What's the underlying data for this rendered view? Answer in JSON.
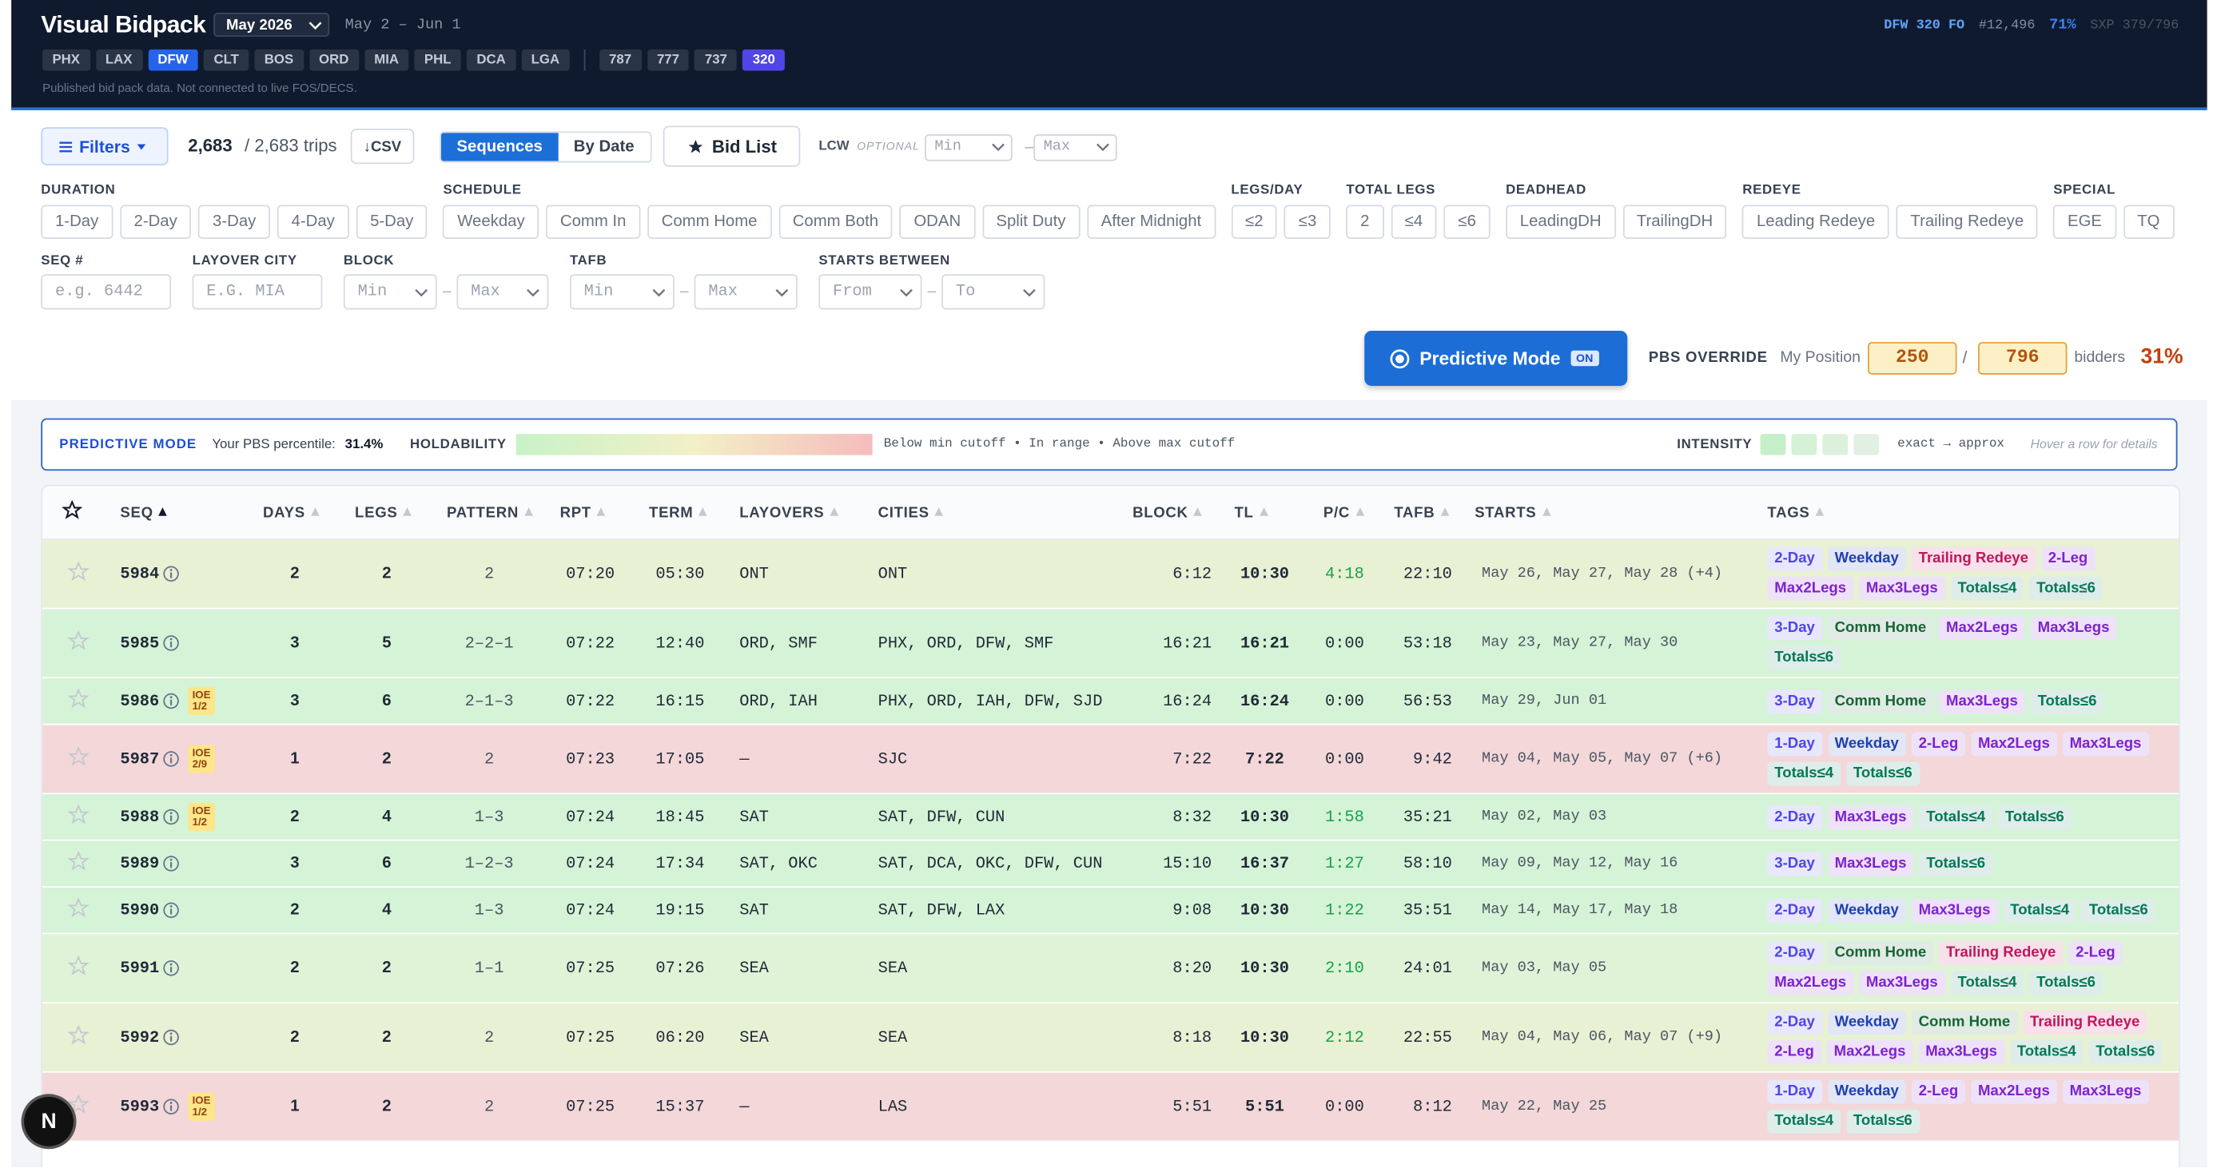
{
  "header": {
    "title": "Visual Bidpack",
    "month": "May 2026",
    "range": "May 2 – Jun 1",
    "bases": [
      {
        "label": "PHX"
      },
      {
        "label": "LAX"
      },
      {
        "label": "DFW",
        "selected": true
      },
      {
        "label": "CLT"
      },
      {
        "label": "BOS"
      },
      {
        "label": "ORD"
      },
      {
        "label": "MIA"
      },
      {
        "label": "PHL"
      },
      {
        "label": "DCA"
      },
      {
        "label": "LGA"
      }
    ],
    "fleets": [
      {
        "label": "787"
      },
      {
        "label": "777"
      },
      {
        "label": "737"
      },
      {
        "label": "320",
        "selected": true
      }
    ],
    "note": "Published bid pack data. Not connected to live FOS/DECS.",
    "status": {
      "crew": "DFW 320 FO",
      "employee": "#12,496",
      "percent": "71%",
      "sxp": "SXP 379/796"
    }
  },
  "toolbar": {
    "filters": "Filters",
    "count": "2,683",
    "total": "/ 2,683 trips",
    "csv": "↓CSV",
    "views": [
      {
        "label": "Sequences",
        "selected": true
      },
      {
        "label": "By Date"
      }
    ],
    "bid_list": "Bid List",
    "lcw": "LCW",
    "lcw_note": "OPTIONAL",
    "lcw_min": "Min",
    "lcw_max": "Max"
  },
  "filters": {
    "groups": [
      {
        "label": "DURATION",
        "options": [
          "1-Day",
          "2-Day",
          "3-Day",
          "4-Day",
          "5-Day"
        ]
      },
      {
        "label": "SCHEDULE",
        "options": [
          "Weekday",
          "Comm In",
          "Comm Home",
          "Comm Both",
          "ODAN",
          "Split Duty",
          "After Midnight"
        ]
      },
      {
        "label": "LEGS/DAY",
        "options": [
          "≤2",
          "≤3"
        ]
      },
      {
        "label": "TOTAL LEGS",
        "options": [
          "2",
          "≤4",
          "≤6"
        ]
      },
      {
        "label": "DEADHEAD",
        "options": [
          "LeadingDH",
          "TrailingDH"
        ]
      },
      {
        "label": "REDEYE",
        "options": [
          "Leading Redeye",
          "Trailing Redeye"
        ]
      },
      {
        "label": "SPECIAL",
        "options": [
          "EGE",
          "TQ"
        ]
      }
    ],
    "fields": [
      {
        "label": "SEQ #",
        "inputs": [
          "e.g. 6442"
        ]
      },
      {
        "label": "LAYOVER CITY",
        "inputs": [
          "E.G. MIA"
        ]
      },
      {
        "label": "BLOCK",
        "inputs": [
          "Min",
          "Max"
        ],
        "select": true
      },
      {
        "label": "TAFB",
        "inputs": [
          "Min",
          "Max"
        ],
        "select": true
      },
      {
        "label": "STARTS BETWEEN",
        "inputs": [
          "From",
          "To"
        ],
        "select": true
      }
    ]
  },
  "predictive": {
    "button": "Predictive Mode",
    "state": "ON",
    "override": "PBS OVERRIDE",
    "position_label": "My Position",
    "position": "250",
    "divider": "/",
    "bidders_count": "796",
    "bidders": "bidders",
    "percent": "31%"
  },
  "legend": {
    "title": "PREDICTIVE MODE",
    "percentile_label": "Your PBS percentile:",
    "percentile": "31.4%",
    "holdability": "HOLDABILITY",
    "holdability_note": "Below min cutoff • In range • Above max cutoff",
    "intensity": "INTENSITY",
    "intensity_note": "exact → approx",
    "hint": "Hover a row for details"
  },
  "table": {
    "columns": [
      "SEQ",
      "DAYS",
      "LEGS",
      "PATTERN",
      "RPT",
      "TERM",
      "LAYOVERS",
      "CITIES",
      "BLOCK",
      "TL",
      "P/C",
      "TAFB",
      "STARTS",
      "TAGS"
    ],
    "rows": [
      {
        "bg": "#e8f1d3",
        "seq": "5984",
        "days": "2",
        "legs": "2",
        "pattern": "2",
        "rpt": "07:20",
        "term": "05:30",
        "layovers": "ONT",
        "cities": "ONT",
        "block": "6:12",
        "tl": "10:30",
        "pc": "4:18",
        "pc_color": "#16a34a",
        "tafb": "22:10",
        "starts": "May 26, May 27, May 28 (+4)",
        "tags": [
          {
            "text": "2-Day",
            "color": "#4f46e5"
          },
          {
            "text": "Weekday",
            "color": "#1e40af"
          },
          {
            "text": "Trailing Redeye",
            "color": "#be185d"
          },
          {
            "text": "2-Leg",
            "color": "#7e22ce"
          },
          {
            "text": "Max2Legs",
            "color": "#7e22ce"
          },
          {
            "text": "Max3Legs",
            "color": "#7e22ce"
          },
          {
            "text": "Totals≤4",
            "color": "#047857"
          },
          {
            "text": "Totals≤6",
            "color": "#047857"
          }
        ]
      },
      {
        "bg": "#d5f3d6",
        "seq": "5985",
        "days": "3",
        "legs": "5",
        "pattern": "2–2–1",
        "rpt": "07:22",
        "term": "12:40",
        "layovers": "ORD, SMF",
        "cities": "PHX, ORD, DFW, SMF",
        "block": "16:21",
        "tl": "16:21",
        "pc": "0:00",
        "pc_color": "#1f2937",
        "tafb": "53:18",
        "starts": "May 23, May 27, May 30",
        "tags": [
          {
            "text": "3-Day",
            "color": "#4f46e5"
          },
          {
            "text": "Comm Home",
            "color": "#166534"
          },
          {
            "text": "Max2Legs",
            "color": "#7e22ce"
          },
          {
            "text": "Max3Legs",
            "color": "#7e22ce"
          },
          {
            "text": "Totals≤6",
            "color": "#047857"
          }
        ]
      },
      {
        "bg": "#d5f3d6",
        "seq": "5986",
        "ioe": {
          "label": "IOE",
          "value": "1/2"
        },
        "days": "3",
        "legs": "6",
        "pattern": "2–1–3",
        "rpt": "07:22",
        "term": "16:15",
        "layovers": "ORD, IAH",
        "cities": "PHX, ORD, IAH, DFW, SJD",
        "block": "16:24",
        "tl": "16:24",
        "pc": "0:00",
        "pc_color": "#1f2937",
        "tafb": "56:53",
        "starts": "May 29, Jun 01",
        "tags": [
          {
            "text": "3-Day",
            "color": "#4f46e5"
          },
          {
            "text": "Comm Home",
            "color": "#166534"
          },
          {
            "text": "Max3Legs",
            "color": "#7e22ce"
          },
          {
            "text": "Totals≤6",
            "color": "#047857"
          }
        ]
      },
      {
        "bg": "#f3d7d9",
        "seq": "5987",
        "ioe": {
          "label": "IOE",
          "value": "2/9"
        },
        "days": "1",
        "legs": "2",
        "pattern": "2",
        "rpt": "07:23",
        "term": "17:05",
        "layovers": "—",
        "cities": "SJC",
        "block": "7:22",
        "tl": "7:22",
        "pc": "0:00",
        "pc_color": "#1f2937",
        "tafb": "9:42",
        "starts": "May 04, May 05, May 07 (+6)",
        "tags": [
          {
            "text": "1-Day",
            "color": "#4f46e5"
          },
          {
            "text": "Weekday",
            "color": "#1e40af"
          },
          {
            "text": "2-Leg",
            "color": "#7e22ce"
          },
          {
            "text": "Max2Legs",
            "color": "#7e22ce"
          },
          {
            "text": "Max3Legs",
            "color": "#7e22ce"
          },
          {
            "text": "Totals≤4",
            "color": "#047857"
          },
          {
            "text": "Totals≤6",
            "color": "#047857"
          }
        ]
      },
      {
        "bg": "#d5f3d6",
        "seq": "5988",
        "ioe": {
          "label": "IOE",
          "value": "1/2"
        },
        "days": "2",
        "legs": "4",
        "pattern": "1–3",
        "rpt": "07:24",
        "term": "18:45",
        "layovers": "SAT",
        "cities": "SAT, DFW, CUN",
        "block": "8:32",
        "tl": "10:30",
        "pc": "1:58",
        "pc_color": "#16a34a",
        "tafb": "35:21",
        "starts": "May 02, May 03",
        "tags": [
          {
            "text": "2-Day",
            "color": "#4f46e5"
          },
          {
            "text": "Max3Legs",
            "color": "#7e22ce"
          },
          {
            "text": "Totals≤4",
            "color": "#047857"
          },
          {
            "text": "Totals≤6",
            "color": "#047857"
          }
        ]
      },
      {
        "bg": "#d5f3d6",
        "seq": "5989",
        "days": "3",
        "legs": "6",
        "pattern": "1–2–3",
        "rpt": "07:24",
        "term": "17:34",
        "layovers": "SAT, OKC",
        "cities": "SAT, DCA, OKC, DFW, CUN",
        "block": "15:10",
        "tl": "16:37",
        "pc": "1:27",
        "pc_color": "#16a34a",
        "tafb": "58:10",
        "starts": "May 09, May 12, May 16",
        "tags": [
          {
            "text": "3-Day",
            "color": "#4f46e5"
          },
          {
            "text": "Max3Legs",
            "color": "#7e22ce"
          },
          {
            "text": "Totals≤6",
            "color": "#047857"
          }
        ]
      },
      {
        "bg": "#d5f3d6",
        "seq": "5990",
        "days": "2",
        "legs": "4",
        "pattern": "1–3",
        "rpt": "07:24",
        "term": "19:15",
        "layovers": "SAT",
        "cities": "SAT, DFW, LAX",
        "block": "9:08",
        "tl": "10:30",
        "pc": "1:22",
        "pc_color": "#16a34a",
        "tafb": "35:51",
        "starts": "May 14, May 17, May 18",
        "tags": [
          {
            "text": "2-Day",
            "color": "#4f46e5"
          },
          {
            "text": "Weekday",
            "color": "#1e40af"
          },
          {
            "text": "Max3Legs",
            "color": "#7e22ce"
          },
          {
            "text": "Totals≤4",
            "color": "#047857"
          },
          {
            "text": "Totals≤6",
            "color": "#047857"
          }
        ]
      },
      {
        "bg": "#dff3d7",
        "seq": "5991",
        "days": "2",
        "legs": "2",
        "pattern": "1–1",
        "rpt": "07:25",
        "term": "07:26",
        "layovers": "SEA",
        "cities": "SEA",
        "block": "8:20",
        "tl": "10:30",
        "pc": "2:10",
        "pc_color": "#16a34a",
        "tafb": "24:01",
        "starts": "May 03, May 05",
        "tags": [
          {
            "text": "2-Day",
            "color": "#4f46e5"
          },
          {
            "text": "Comm Home",
            "color": "#166534"
          },
          {
            "text": "Trailing Redeye",
            "color": "#be185d"
          },
          {
            "text": "2-Leg",
            "color": "#7e22ce"
          },
          {
            "text": "Max2Legs",
            "color": "#7e22ce"
          },
          {
            "text": "Max3Legs",
            "color": "#7e22ce"
          },
          {
            "text": "Totals≤4",
            "color": "#047857"
          },
          {
            "text": "Totals≤6",
            "color": "#047857"
          }
        ]
      },
      {
        "bg": "#e8f1d3",
        "seq": "5992",
        "days": "2",
        "legs": "2",
        "pattern": "2",
        "rpt": "07:25",
        "term": "06:20",
        "layovers": "SEA",
        "cities": "SEA",
        "block": "8:18",
        "tl": "10:30",
        "pc": "2:12",
        "pc_color": "#16a34a",
        "tafb": "22:55",
        "starts": "May 04, May 06, May 07 (+9)",
        "tags": [
          {
            "text": "2-Day",
            "color": "#4f46e5"
          },
          {
            "text": "Weekday",
            "color": "#1e40af"
          },
          {
            "text": "Comm Home",
            "color": "#166534"
          },
          {
            "text": "Trailing Redeye",
            "color": "#be185d"
          },
          {
            "text": "2-Leg",
            "color": "#7e22ce"
          },
          {
            "text": "Max2Legs",
            "color": "#7e22ce"
          },
          {
            "text": "Max3Legs",
            "color": "#7e22ce"
          },
          {
            "text": "Totals≤4",
            "color": "#047857"
          },
          {
            "text": "Totals≤6",
            "color": "#047857"
          }
        ]
      },
      {
        "bg": "#f3d7d9",
        "seq": "5993",
        "ioe": {
          "label": "IOE",
          "value": "1/2"
        },
        "days": "1",
        "legs": "2",
        "pattern": "2",
        "rpt": "07:25",
        "term": "15:37",
        "layovers": "—",
        "cities": "LAS",
        "block": "5:51",
        "tl": "5:51",
        "pc": "0:00",
        "pc_color": "#1f2937",
        "tafb": "8:12",
        "starts": "May 22, May 25",
        "tags": [
          {
            "text": "1-Day",
            "color": "#4f46e5"
          },
          {
            "text": "Weekday",
            "color": "#1e40af"
          },
          {
            "text": "2-Leg",
            "color": "#7e22ce"
          },
          {
            "text": "Max2Legs",
            "color": "#7e22ce"
          },
          {
            "text": "Max3Legs",
            "color": "#7e22ce"
          },
          {
            "text": "Totals≤4",
            "color": "#047857"
          },
          {
            "text": "Totals≤6",
            "color": "#047857"
          }
        ]
      }
    ]
  },
  "dev_badge": "N"
}
